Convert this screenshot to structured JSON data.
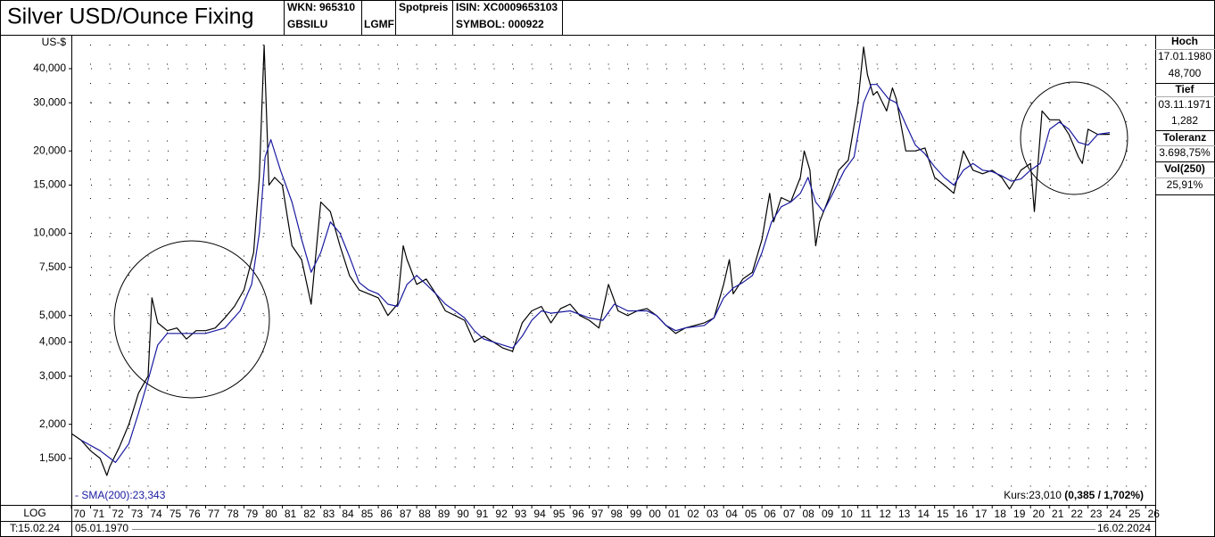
{
  "header": {
    "wkn": "WKN: 965310",
    "code": "GBSILU",
    "exchange": "LGMF",
    "price_type": "Spotpreis",
    "isin": "ISIN: XC0009653103",
    "symbol": "SYMBOL: 000922"
  },
  "side_panel": {
    "high_label": "Hoch",
    "high_date": "17.01.1980",
    "high_value": "48,700",
    "low_label": "Tief",
    "low_date": "03.11.1971",
    "low_value": "1,282",
    "tolerance_label": "Toleranz",
    "tolerance_value": "3.698,75%",
    "volatility_label": "Vol(250)",
    "volatility_value": "25,91%"
  },
  "footer": {
    "scale_mode": "LOG",
    "today": "T:15.02.24",
    "range_start": "05.01.1970",
    "range_end": "16.02.2024"
  },
  "chart_data": {
    "type": "line",
    "title": "Silver USD/Ounce Fixing",
    "y_unit": "US-$",
    "yscale": "log",
    "grid": true,
    "sma_label": "- SMA(200):23,343",
    "last_price": "Kurs:23,010",
    "last_change": "(0,385 / 1,702%)",
    "xlim": [
      1970,
      2026.5
    ],
    "ylim": [
      1.022,
      52.8
    ],
    "yticks": [
      {
        "value": 1.5,
        "label": "1,500"
      },
      {
        "value": 2,
        "label": "2,000"
      },
      {
        "value": 3,
        "label": "3,000"
      },
      {
        "value": 4,
        "label": "4,000"
      },
      {
        "value": 5,
        "label": "5,000"
      },
      {
        "value": 7.5,
        "label": "7,500"
      },
      {
        "value": 10,
        "label": "10,000"
      },
      {
        "value": 15,
        "label": "15,000"
      },
      {
        "value": 20,
        "label": "20,000"
      },
      {
        "value": 30,
        "label": "30,000"
      },
      {
        "value": 40,
        "label": "40,000"
      }
    ],
    "xticks": [
      {
        "value": 1970,
        "label": "70"
      },
      {
        "value": 1971,
        "label": "71"
      },
      {
        "value": 1972,
        "label": "72"
      },
      {
        "value": 1973,
        "label": "73"
      },
      {
        "value": 1974,
        "label": "74"
      },
      {
        "value": 1975,
        "label": "75"
      },
      {
        "value": 1976,
        "label": "76"
      },
      {
        "value": 1977,
        "label": "77"
      },
      {
        "value": 1978,
        "label": "78"
      },
      {
        "value": 1979,
        "label": "79"
      },
      {
        "value": 1980,
        "label": "80"
      },
      {
        "value": 1981,
        "label": "81"
      },
      {
        "value": 1982,
        "label": "82"
      },
      {
        "value": 1983,
        "label": "83"
      },
      {
        "value": 1984,
        "label": "84"
      },
      {
        "value": 1985,
        "label": "85"
      },
      {
        "value": 1986,
        "label": "86"
      },
      {
        "value": 1987,
        "label": "87"
      },
      {
        "value": 1988,
        "label": "88"
      },
      {
        "value": 1989,
        "label": "89"
      },
      {
        "value": 1990,
        "label": "90"
      },
      {
        "value": 1991,
        "label": "91"
      },
      {
        "value": 1992,
        "label": "92"
      },
      {
        "value": 1993,
        "label": "93"
      },
      {
        "value": 1994,
        "label": "94"
      },
      {
        "value": 1995,
        "label": "95"
      },
      {
        "value": 1996,
        "label": "96"
      },
      {
        "value": 1997,
        "label": "97"
      },
      {
        "value": 1998,
        "label": "98"
      },
      {
        "value": 1999,
        "label": "99"
      },
      {
        "value": 2000,
        "label": "00"
      },
      {
        "value": 2001,
        "label": "01"
      },
      {
        "value": 2002,
        "label": "02"
      },
      {
        "value": 2003,
        "label": "03"
      },
      {
        "value": 2004,
        "label": "04"
      },
      {
        "value": 2005,
        "label": "05"
      },
      {
        "value": 2006,
        "label": "06"
      },
      {
        "value": 2007,
        "label": "07"
      },
      {
        "value": 2008,
        "label": "08"
      },
      {
        "value": 2009,
        "label": "09"
      },
      {
        "value": 2010,
        "label": "10"
      },
      {
        "value": 2011,
        "label": "11"
      },
      {
        "value": 2012,
        "label": "12"
      },
      {
        "value": 2013,
        "label": "13"
      },
      {
        "value": 2014,
        "label": "14"
      },
      {
        "value": 2015,
        "label": "15"
      },
      {
        "value": 2016,
        "label": "16"
      },
      {
        "value": 2017,
        "label": "17"
      },
      {
        "value": 2018,
        "label": "18"
      },
      {
        "value": 2019,
        "label": "19"
      },
      {
        "value": 2020,
        "label": "20"
      },
      {
        "value": 2021,
        "label": "21"
      },
      {
        "value": 2022,
        "label": "22"
      },
      {
        "value": 2023,
        "label": "23"
      },
      {
        "value": 2024,
        "label": "24"
      },
      {
        "value": 2025,
        "label": "25"
      },
      {
        "value": 2026,
        "label": "26"
      }
    ],
    "series": [
      {
        "color": "#000000",
        "x": [
          1970.0,
          1970.5,
          1971.0,
          1971.5,
          1971.85,
          1972.0,
          1972.5,
          1973.0,
          1973.5,
          1974.0,
          1974.2,
          1974.5,
          1975.0,
          1975.5,
          1976.0,
          1976.5,
          1977.0,
          1977.5,
          1978.0,
          1978.5,
          1979.0,
          1979.5,
          1979.8,
          1980.05,
          1980.3,
          1980.6,
          1981.0,
          1981.5,
          1982.0,
          1982.5,
          1983.0,
          1983.5,
          1984.0,
          1984.5,
          1985.0,
          1985.5,
          1986.0,
          1986.5,
          1987.0,
          1987.3,
          1987.5,
          1988.0,
          1988.5,
          1989.0,
          1989.5,
          1990.0,
          1990.5,
          1991.0,
          1991.5,
          1992.0,
          1992.5,
          1993.0,
          1993.5,
          1994.0,
          1994.5,
          1995.0,
          1995.5,
          1996.0,
          1996.5,
          1997.0,
          1997.5,
          1998.0,
          1998.5,
          1999.0,
          1999.5,
          2000.0,
          2000.5,
          2001.0,
          2001.5,
          2002.0,
          2002.5,
          2003.0,
          2003.5,
          2004.0,
          2004.3,
          2004.5,
          2005.0,
          2005.5,
          2006.0,
          2006.4,
          2006.6,
          2007.0,
          2007.5,
          2008.0,
          2008.2,
          2008.5,
          2008.8,
          2009.0,
          2009.5,
          2010.0,
          2010.5,
          2011.0,
          2011.3,
          2011.5,
          2011.8,
          2012.0,
          2012.5,
          2012.8,
          2013.0,
          2013.5,
          2014.0,
          2014.5,
          2015.0,
          2015.5,
          2016.0,
          2016.5,
          2017.0,
          2017.5,
          2018.0,
          2018.5,
          2018.9,
          2019.5,
          2020.0,
          2020.2,
          2020.6,
          2021.0,
          2021.5,
          2022.0,
          2022.5,
          2022.7,
          2023.0,
          2023.5,
          2024.0,
          2024.13
        ],
        "values": [
          1.85,
          1.75,
          1.6,
          1.5,
          1.3,
          1.4,
          1.65,
          2.0,
          2.6,
          3.0,
          5.8,
          4.7,
          4.4,
          4.5,
          4.1,
          4.4,
          4.4,
          4.5,
          4.9,
          5.4,
          6.2,
          8.5,
          16,
          48.7,
          15,
          16,
          15,
          9,
          8,
          5.5,
          13,
          12,
          9,
          7,
          6.2,
          6.0,
          5.8,
          5.0,
          5.5,
          9,
          8,
          6.5,
          6.8,
          6.0,
          5.2,
          5.0,
          4.8,
          4.0,
          4.2,
          4.0,
          3.8,
          3.7,
          4.7,
          5.2,
          5.4,
          4.7,
          5.3,
          5.5,
          5.0,
          4.8,
          4.5,
          6.5,
          5.2,
          5.0,
          5.2,
          5.3,
          5.0,
          4.6,
          4.3,
          4.5,
          4.6,
          4.7,
          4.9,
          6.5,
          8,
          6.0,
          6.8,
          7.2,
          9.5,
          14,
          11,
          13.5,
          13,
          16,
          20,
          17,
          9,
          11,
          13.5,
          17,
          18.5,
          30,
          48,
          38,
          32,
          33,
          28,
          34,
          31,
          20,
          20,
          20.5,
          16,
          15,
          14,
          20,
          17,
          16.5,
          17,
          16,
          14.5,
          17,
          18,
          12,
          28,
          26,
          26,
          23,
          19,
          18,
          24,
          23,
          23,
          23.01
        ]
      },
      {
        "name": "SMA(200)",
        "color": "#1a1aa0",
        "x": [
          1970.5,
          1971.5,
          1972.3,
          1973.0,
          1973.5,
          1974.0,
          1974.5,
          1975.0,
          1976.0,
          1977.0,
          1978.0,
          1978.8,
          1979.4,
          1979.8,
          1980.1,
          1980.4,
          1980.9,
          1981.5,
          1982.0,
          1982.5,
          1983.0,
          1983.5,
          1984.0,
          1984.5,
          1985.0,
          1985.5,
          1986.0,
          1986.5,
          1987.0,
          1987.5,
          1988.0,
          1988.5,
          1989.0,
          1989.5,
          1990.0,
          1990.5,
          1991.0,
          1991.5,
          1992.0,
          1992.5,
          1993.0,
          1993.5,
          1994.0,
          1994.5,
          1995.0,
          1996.0,
          1997.0,
          1997.7,
          1998.3,
          1999.0,
          2000.0,
          2000.5,
          2001.0,
          2001.5,
          2002.0,
          2003.0,
          2003.5,
          2004.0,
          2004.5,
          2005.0,
          2005.5,
          2006.0,
          2006.5,
          2007.0,
          2007.5,
          2008.0,
          2008.4,
          2008.8,
          2009.2,
          2009.7,
          2010.3,
          2010.8,
          2011.3,
          2011.7,
          2012.0,
          2012.6,
          2013.0,
          2013.5,
          2014.0,
          2014.5,
          2015.0,
          2015.5,
          2016.0,
          2016.5,
          2017.0,
          2017.5,
          2018.0,
          2018.5,
          2019.0,
          2019.5,
          2020.0,
          2020.5,
          2021.0,
          2021.5,
          2022.0,
          2022.5,
          2023.0,
          2023.5,
          2024.13
        ],
        "values": [
          1.75,
          1.6,
          1.45,
          1.7,
          2.2,
          2.9,
          3.9,
          4.3,
          4.3,
          4.3,
          4.5,
          5.2,
          6.5,
          10,
          19,
          22,
          17,
          13,
          9.5,
          7.2,
          8.5,
          11,
          10,
          8.2,
          6.6,
          6.2,
          6.0,
          5.5,
          5.4,
          6.5,
          7.0,
          6.5,
          6.0,
          5.5,
          5.2,
          4.9,
          4.4,
          4.1,
          4.0,
          3.9,
          3.8,
          4.2,
          4.8,
          5.2,
          5.1,
          5.2,
          4.9,
          4.8,
          5.5,
          5.2,
          5.2,
          5.0,
          4.6,
          4.4,
          4.5,
          4.6,
          4.9,
          5.8,
          6.3,
          6.6,
          7.0,
          8.5,
          11,
          12.5,
          13,
          14,
          16,
          13,
          12,
          14,
          17,
          19,
          30,
          35,
          35,
          31,
          30,
          25,
          21,
          19.5,
          17.5,
          16,
          15,
          17,
          18,
          17,
          16.8,
          16.2,
          15.5,
          15.8,
          17,
          18,
          24,
          25.5,
          24,
          21.5,
          21,
          23,
          23.343
        ]
      }
    ]
  }
}
